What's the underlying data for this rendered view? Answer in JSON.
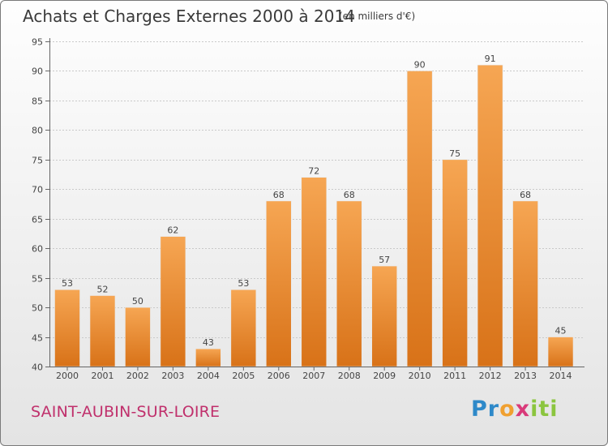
{
  "chart_data": {
    "type": "bar",
    "title": "Achats et Charges Externes 2000 à 2014",
    "subtitle": "(en milliers d'€)",
    "categories": [
      "2000",
      "2001",
      "2002",
      "2003",
      "2004",
      "2005",
      "2006",
      "2007",
      "2008",
      "2009",
      "2010",
      "2011",
      "2012",
      "2013",
      "2014"
    ],
    "values": [
      53,
      52,
      50,
      62,
      43,
      53,
      68,
      72,
      68,
      57,
      90,
      75,
      91,
      68,
      45
    ],
    "ylim": [
      40,
      95
    ],
    "yticks": [
      40,
      45,
      50,
      55,
      60,
      65,
      70,
      75,
      80,
      85,
      90,
      95
    ],
    "grid": true,
    "bar_color_top": "#f6a653",
    "bar_color_bottom": "#d87218"
  },
  "footer": {
    "place": "SAINT-AUBIN-SUR-LOIRE",
    "logo_parts": [
      "Pr",
      "o",
      "x",
      "iti"
    ]
  }
}
